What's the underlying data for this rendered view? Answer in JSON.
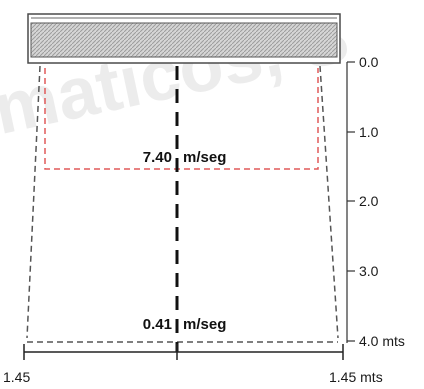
{
  "watermark": {
    "text": "maticos, S"
  },
  "scale": {
    "ticks": [
      "0.0",
      "1.0",
      "2.0",
      "3.0",
      "4.0 mts"
    ]
  },
  "velocities": {
    "upper": {
      "value": "7.40",
      "unit": "m/seg"
    },
    "lower": {
      "value": "0.41",
      "unit": "m/seg"
    }
  },
  "width": {
    "left": "1.45",
    "right": "1.45 mts"
  },
  "colors": {
    "upper_zone_outline": "#e05a5a",
    "line": "#333333",
    "hatch": "#b9b9b9"
  }
}
